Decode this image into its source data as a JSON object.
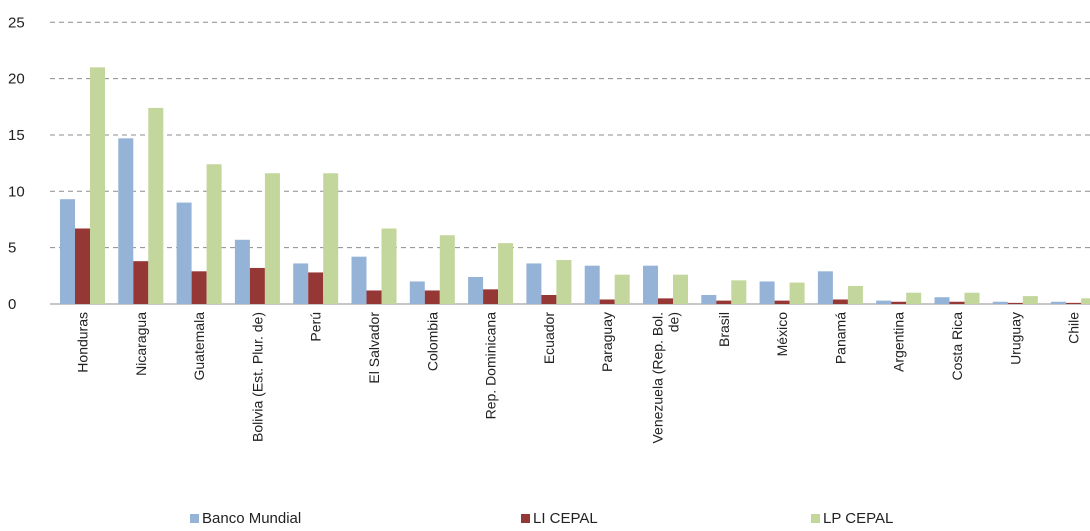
{
  "chart_data": {
    "type": "bar",
    "categories": [
      "Honduras",
      "Nicaragua",
      "Guatemala",
      "Bolivia (Est. Plur. de)",
      "Perú",
      "El Salvador",
      "Colombia",
      "Rep. Dominicana",
      "Ecuador",
      "Paraguay",
      "Venezuela (Rep. Bol. de)",
      "Brasil",
      "México",
      "Panamá",
      "Argentina",
      "Costa Rica",
      "Uruguay",
      "Chile"
    ],
    "category_lines": [
      [
        "Honduras"
      ],
      [
        "Nicaragua"
      ],
      [
        "Guatemala"
      ],
      [
        "Bolivia (Est. Plur. de)"
      ],
      [
        "Perú"
      ],
      [
        "El Salvador"
      ],
      [
        "Colombia"
      ],
      [
        "Rep. Dominicana"
      ],
      [
        "Ecuador"
      ],
      [
        "Paraguay"
      ],
      [
        "Venezuela (Rep. Bol.",
        "de)"
      ],
      [
        "Brasil"
      ],
      [
        "México"
      ],
      [
        "Panamá"
      ],
      [
        "Argentina"
      ],
      [
        "Costa Rica"
      ],
      [
        "Uruguay"
      ],
      [
        "Chile"
      ]
    ],
    "series": [
      {
        "name": "Banco Mundial",
        "color": "#95b3d7",
        "values": [
          9.3,
          14.7,
          9.0,
          5.7,
          3.6,
          4.2,
          2.0,
          2.4,
          3.6,
          3.4,
          3.4,
          0.8,
          2.0,
          2.9,
          0.3,
          0.6,
          0.2,
          0.2
        ]
      },
      {
        "name": "LI CEPAL",
        "color": "#953735",
        "values": [
          6.7,
          3.8,
          2.9,
          3.2,
          2.8,
          1.2,
          1.2,
          1.3,
          0.8,
          0.4,
          0.5,
          0.3,
          0.3,
          0.4,
          0.2,
          0.2,
          0.1,
          0.1
        ]
      },
      {
        "name": "LP CEPAL",
        "color": "#c3d69b",
        "values": [
          21.0,
          17.4,
          12.4,
          11.6,
          11.6,
          6.7,
          6.1,
          5.4,
          3.9,
          2.6,
          2.6,
          2.1,
          1.9,
          1.6,
          1.0,
          1.0,
          0.7,
          0.5
        ]
      }
    ],
    "yticks": [
      "0",
      "5",
      "10",
      "15",
      "20",
      "25"
    ],
    "ylim": [
      0,
      25
    ],
    "grid": true,
    "gridline_style": "dashed",
    "legend_position": "bottom"
  }
}
